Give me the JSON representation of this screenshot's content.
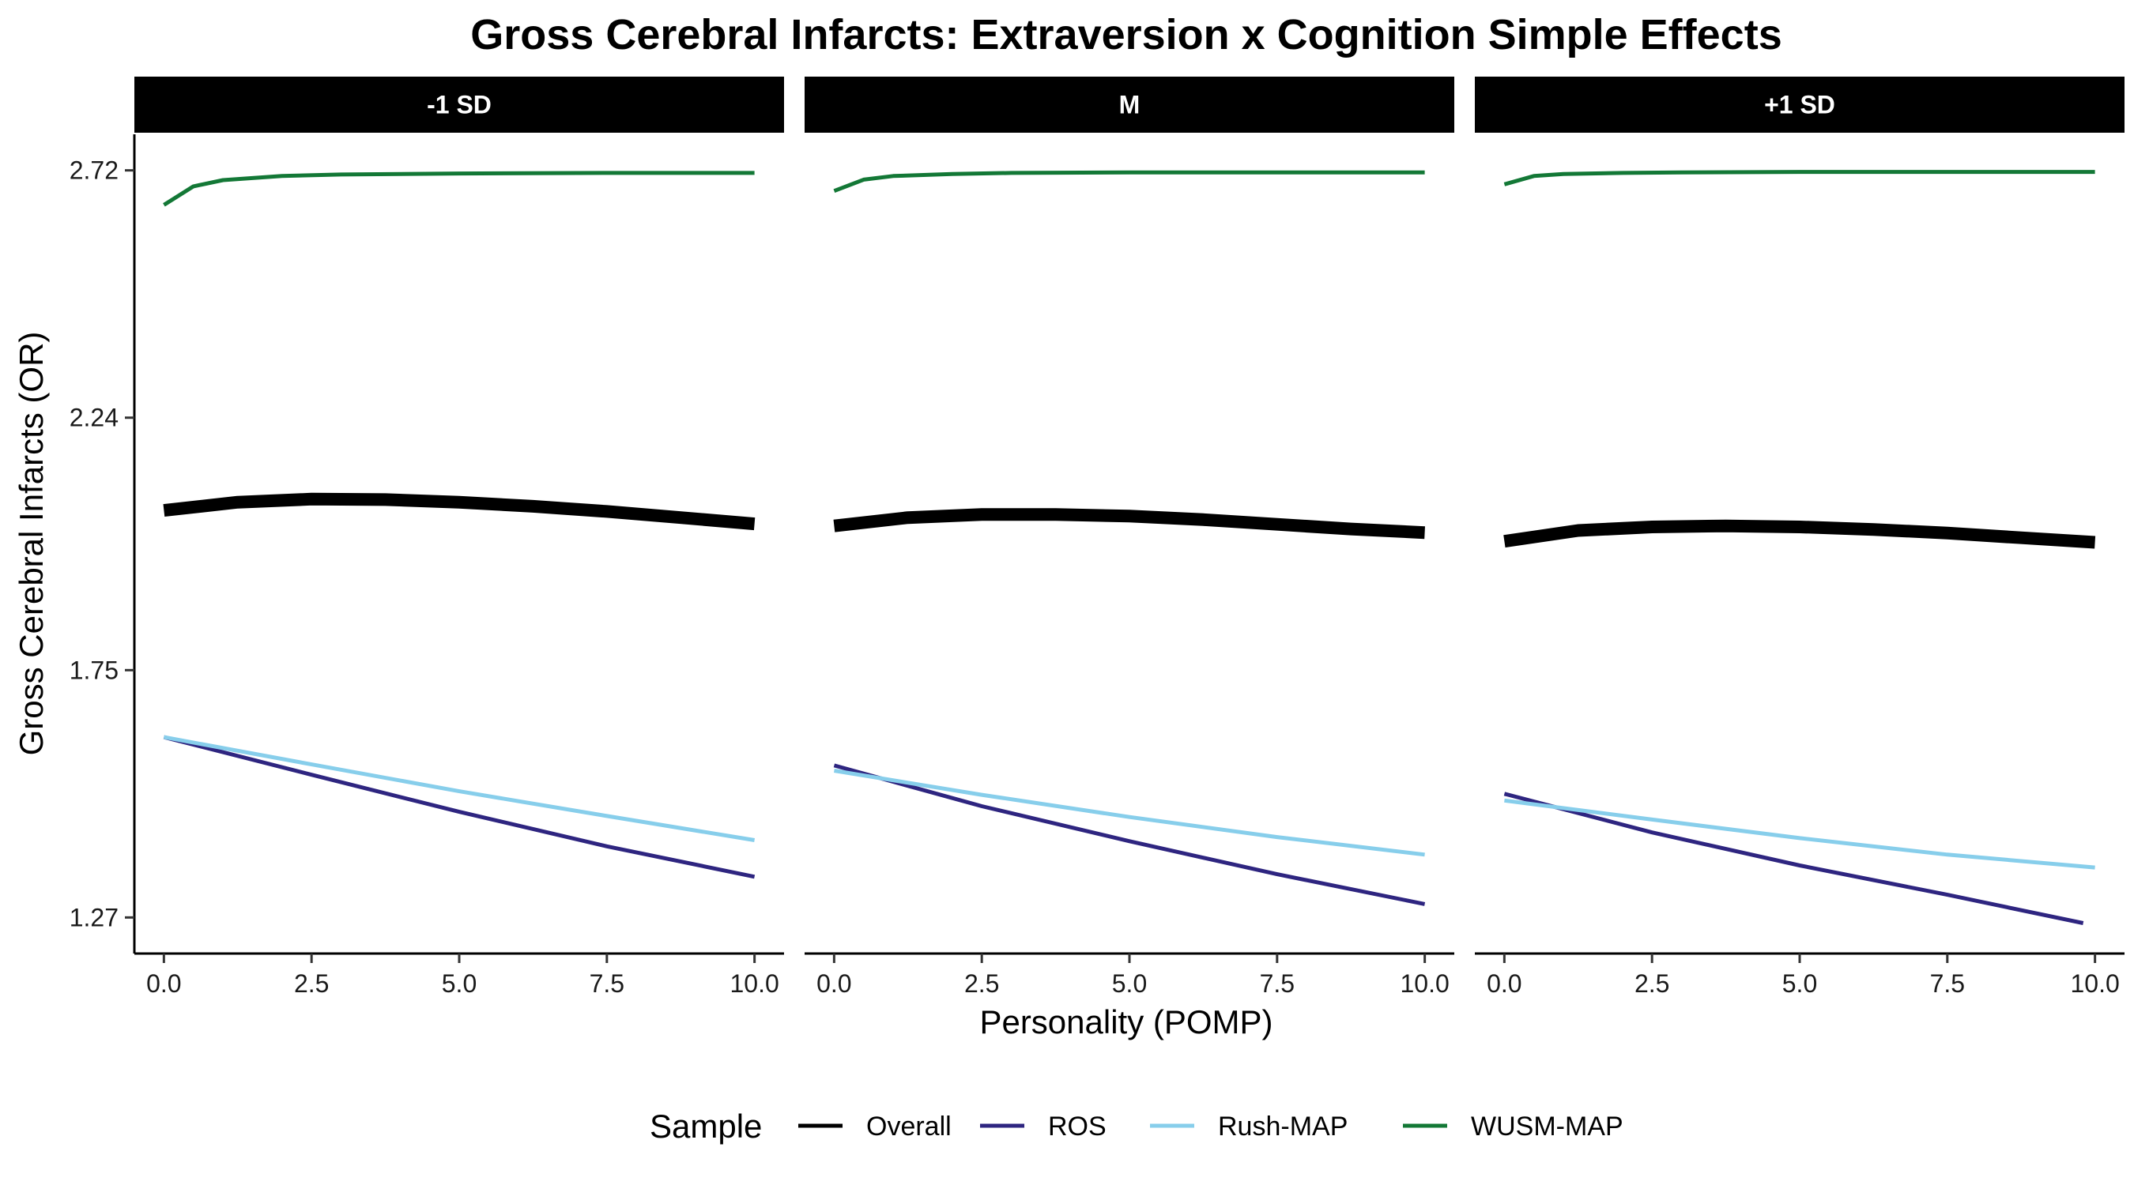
{
  "chart_data": {
    "type": "line",
    "title": "Gross Cerebral Infarcts: Extraversion x Cognition Simple Effects",
    "xlabel": "Personality (POMP)",
    "ylabel": "Gross Cerebral Infarcts (OR)",
    "xlim": [
      -0.5,
      10.5
    ],
    "ylim": [
      1.2,
      2.79
    ],
    "x_ticks": [
      0,
      2.5,
      5,
      7.5,
      10
    ],
    "x_tick_labels": [
      "0.0",
      "2.5",
      "5.0",
      "7.5",
      "10.0"
    ],
    "y_ticks": [
      1.27,
      1.75,
      2.24,
      2.72
    ],
    "y_tick_labels": [
      "1.27",
      "1.75",
      "2.24",
      "2.72"
    ],
    "legend": {
      "title": "Sample",
      "position": "bottom",
      "entries": [
        {
          "name": "Overall",
          "color": "#000000"
        },
        {
          "name": "ROS",
          "color": "#2e2580"
        },
        {
          "name": "Rush-MAP",
          "color": "#87ceeb"
        },
        {
          "name": "WUSM-MAP",
          "color": "#137836"
        }
      ]
    },
    "panels": [
      {
        "label": "-1 SD",
        "series": [
          {
            "name": "Overall",
            "x": [
              0,
              1.25,
              2.5,
              3.75,
              5,
              6.25,
              7.5,
              8.75,
              10
            ],
            "y": [
              2.06,
              2.076,
              2.082,
              2.081,
              2.076,
              2.068,
              2.058,
              2.046,
              2.034
            ]
          },
          {
            "name": "ROS",
            "x": [
              0,
              2.5,
              5,
              7.5,
              10
            ],
            "y": [
              1.62,
              1.547,
              1.475,
              1.408,
              1.349
            ]
          },
          {
            "name": "Rush-MAP",
            "x": [
              0,
              2.5,
              5,
              7.5,
              10
            ],
            "y": [
              1.62,
              1.567,
              1.515,
              1.467,
              1.42
            ]
          },
          {
            "name": "WUSM-MAP",
            "x": [
              0,
              0.5,
              1,
              2,
              3,
              5,
              7.5,
              10
            ],
            "y": [
              2.653,
              2.689,
              2.701,
              2.709,
              2.712,
              2.714,
              2.715,
              2.715
            ]
          }
        ]
      },
      {
        "label": "M",
        "series": [
          {
            "name": "Overall",
            "x": [
              0,
              1.25,
              2.5,
              3.75,
              5,
              6.25,
              7.5,
              8.75,
              10
            ],
            "y": [
              2.03,
              2.046,
              2.052,
              2.052,
              2.049,
              2.042,
              2.033,
              2.024,
              2.017
            ]
          },
          {
            "name": "ROS",
            "x": [
              0,
              2.5,
              5,
              7.5,
              10
            ],
            "y": [
              1.565,
              1.486,
              1.418,
              1.354,
              1.296
            ]
          },
          {
            "name": "Rush-MAP",
            "x": [
              0,
              2.5,
              5,
              7.5,
              10
            ],
            "y": [
              1.555,
              1.508,
              1.465,
              1.426,
              1.392
            ]
          },
          {
            "name": "WUSM-MAP",
            "x": [
              0,
              0.5,
              1,
              2,
              3,
              5,
              7.5,
              10
            ],
            "y": [
              2.68,
              2.702,
              2.709,
              2.713,
              2.715,
              2.716,
              2.716,
              2.716
            ]
          }
        ]
      },
      {
        "label": "+1 SD",
        "series": [
          {
            "name": "Overall",
            "x": [
              0,
              1.25,
              2.5,
              3.75,
              5,
              6.25,
              7.5,
              8.75,
              10
            ],
            "y": [
              2.0,
              2.021,
              2.028,
              2.03,
              2.028,
              2.023,
              2.016,
              2.007,
              1.998
            ]
          },
          {
            "name": "ROS",
            "x": [
              0,
              2.5,
              5,
              7.5,
              9.8
            ],
            "y": [
              1.51,
              1.435,
              1.371,
              1.314,
              1.259
            ]
          },
          {
            "name": "Rush-MAP",
            "x": [
              0,
              2.5,
              5,
              7.5,
              10
            ],
            "y": [
              1.497,
              1.46,
              1.424,
              1.392,
              1.367
            ]
          },
          {
            "name": "WUSM-MAP",
            "x": [
              0,
              0.5,
              1,
              2,
              3,
              5,
              7.5,
              10
            ],
            "y": [
              2.693,
              2.709,
              2.713,
              2.715,
              2.716,
              2.717,
              2.717,
              2.717
            ]
          }
        ]
      }
    ]
  }
}
